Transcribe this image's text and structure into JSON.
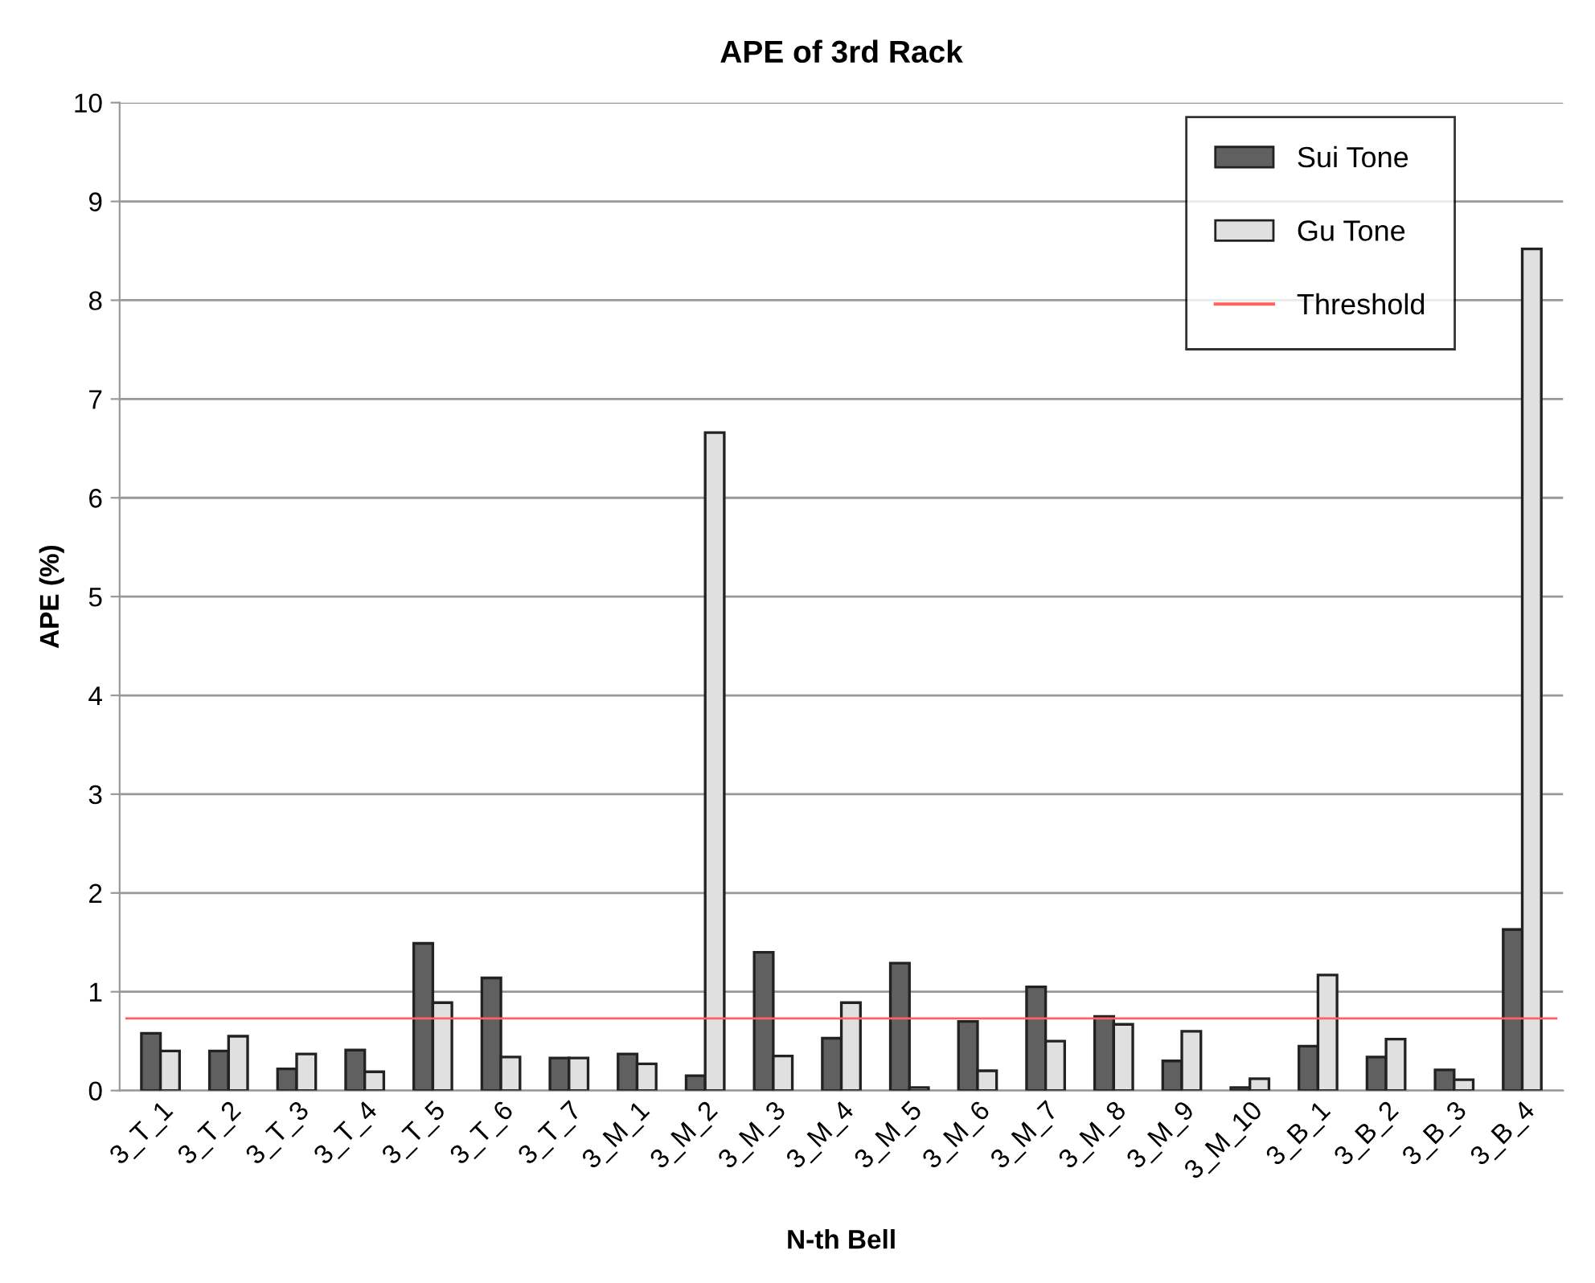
{
  "chart_data": {
    "type": "bar",
    "title": "APE of 3rd Rack",
    "xlabel": "N-th Bell",
    "ylabel": "APE (%)",
    "categories": [
      "3_T_1",
      "3_T_2",
      "3_T_3",
      "3_T_4",
      "3_T_5",
      "3_T_6",
      "3_T_7",
      "3_M_1",
      "3_M_2",
      "3_M_3",
      "3_M_4",
      "3_M_5",
      "3_M_6",
      "3_M_7",
      "3_M_8",
      "3_M_9",
      "3_M_10",
      "3_B_1",
      "3_B_2",
      "3_B_3",
      "3_B_4"
    ],
    "series": [
      {
        "name": "Sui Tone",
        "color": "#606060",
        "values": [
          0.58,
          0.4,
          0.22,
          0.41,
          1.49,
          1.14,
          0.33,
          0.37,
          0.15,
          1.4,
          0.53,
          1.29,
          0.7,
          1.05,
          0.75,
          0.3,
          0.03,
          0.45,
          0.34,
          0.21,
          1.63
        ]
      },
      {
        "name": "Gu Tone",
        "color": "#e0e0e0",
        "values": [
          0.4,
          0.55,
          0.37,
          0.19,
          0.89,
          0.34,
          0.33,
          0.27,
          6.66,
          0.35,
          0.89,
          0.03,
          0.2,
          0.5,
          0.67,
          0.6,
          0.12,
          1.17,
          0.52,
          0.11,
          8.52
        ]
      }
    ],
    "ref_lines": [
      {
        "axis": "y",
        "value": 0.73,
        "label": "Threshold",
        "color": "#ff6060",
        "line_style": "solid"
      }
    ],
    "ylim": [
      0,
      10
    ],
    "yticks": [
      0,
      1,
      2,
      3,
      4,
      5,
      6,
      7,
      8,
      9,
      10
    ],
    "grid": "y",
    "legend": "top right"
  }
}
